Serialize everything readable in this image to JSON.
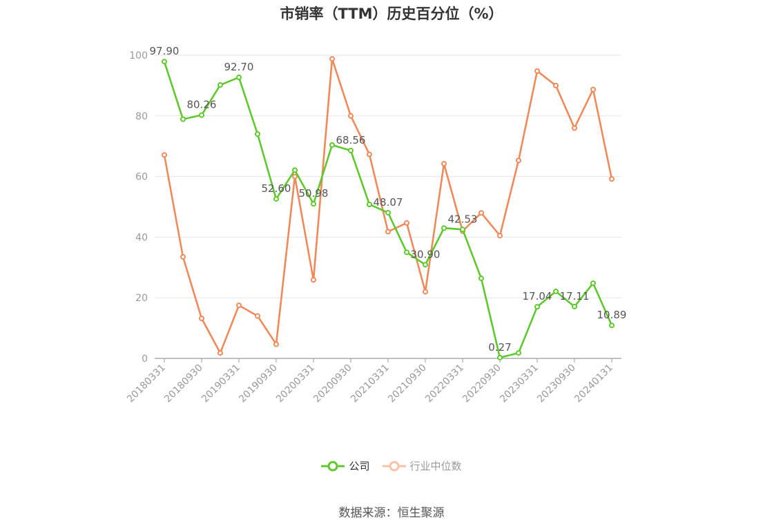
{
  "title": "市销率（TTM）历史百分位（%）",
  "source": "数据来源：恒生聚源",
  "chart_data": {
    "type": "line",
    "title": "市销率（TTM）历史百分位（%）",
    "ylim": [
      0,
      100
    ],
    "y_ticks": [
      "0",
      "20",
      "40",
      "60",
      "80",
      "100"
    ],
    "grid": true,
    "legend_position": "bottom-center",
    "x": [
      "20180331",
      "20180630",
      "20180930",
      "20181231",
      "20190331",
      "20190630",
      "20190930",
      "20191231",
      "20200331",
      "20200630",
      "20200930",
      "20201231",
      "20210331",
      "20210630",
      "20210930",
      "20211231",
      "20220331",
      "20220630",
      "20220930",
      "20221231",
      "20230331",
      "20230630",
      "20230930",
      "20231231",
      "20240131"
    ],
    "x_tick_labels": [
      "20180331",
      "20180930",
      "20190331",
      "20190930",
      "20200331",
      "20200930",
      "20210331",
      "20210930",
      "20220331",
      "20220930",
      "20230331",
      "20230930",
      "20240131"
    ],
    "series": [
      {
        "name": "公司",
        "color": "#5ec82c",
        "values": [
          97.9,
          78.9,
          80.26,
          90.2,
          92.7,
          74.0,
          52.6,
          62.1,
          50.98,
          70.4,
          68.56,
          50.8,
          48.07,
          35.0,
          30.9,
          43.0,
          42.53,
          26.4,
          0.27,
          1.8,
          17.04,
          22.1,
          17.11,
          24.8,
          10.89
        ],
        "labels": [
          "97.90",
          "",
          "80.26",
          "",
          "92.70",
          "",
          "52.60",
          "",
          "50.98",
          "",
          "68.56",
          "",
          "48.07",
          "",
          "30.90",
          "",
          "42.53",
          "",
          "0.27",
          "",
          "17.04",
          "",
          "17.11",
          "",
          "10.89"
        ]
      },
      {
        "name": "行业中位数",
        "color": "#f0895a",
        "values": [
          67.1,
          33.5,
          13.2,
          1.8,
          17.5,
          14.0,
          4.7,
          60.0,
          25.9,
          98.8,
          80.0,
          67.3,
          41.8,
          44.7,
          22.0,
          64.2,
          42.0,
          48.0,
          40.5,
          65.3,
          94.8,
          90.0,
          76.0,
          88.7,
          59.2
        ]
      }
    ]
  }
}
